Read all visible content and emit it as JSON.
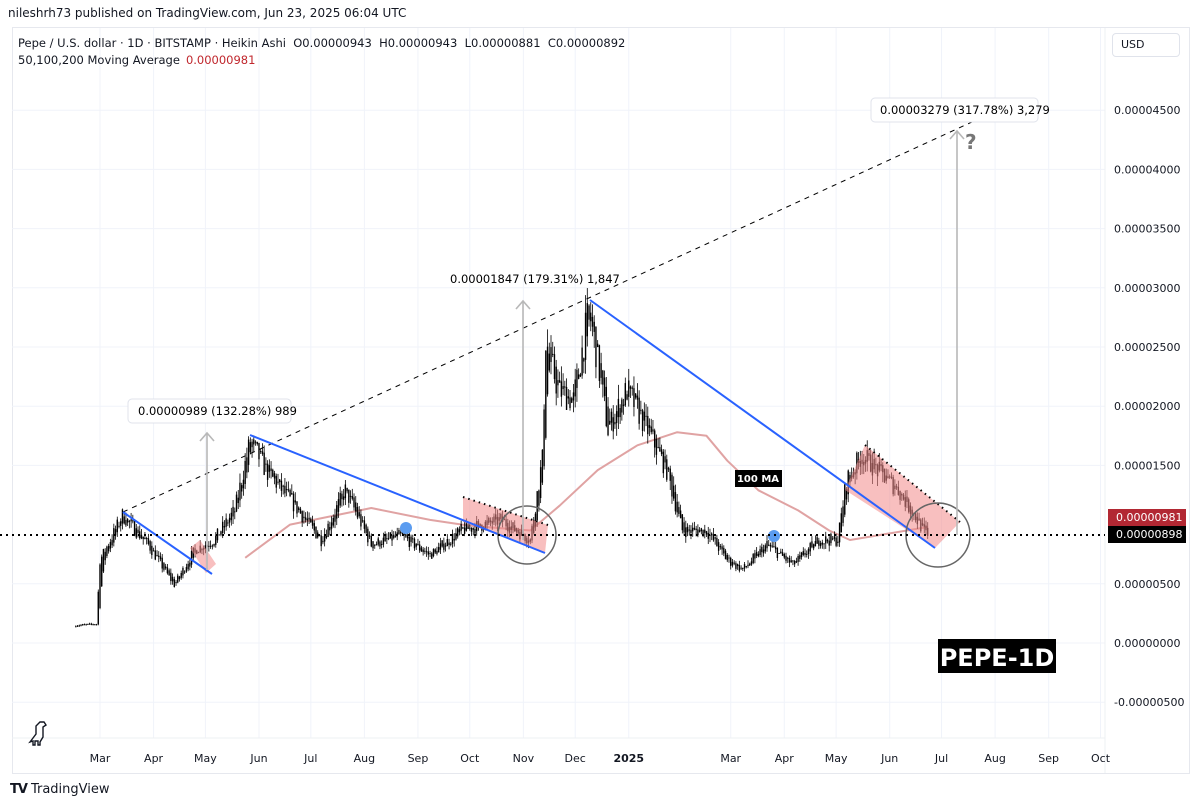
{
  "publisher_line": "nileshrh73 published on TradingView.com, Jun 23, 2025 06:04 UTC",
  "legend": {
    "symbol": "Pepe / U.S. dollar · 1D · BITSTAMP · Heikin Ashi",
    "open": "O0.00000943",
    "high": "H0.00000943",
    "low": "L0.00000881",
    "close": "C0.00000892",
    "indicator": "50,100,200 Moving Average",
    "indicator_value": "0.00000981"
  },
  "currency_button": "USD",
  "footer_brand": "TradingView",
  "annotations": {
    "measure_1": "0.00000989 (132.28%) 989",
    "measure_2": "0.00001847 (179.31%) 1,847",
    "measure_3": "0.00003279 (317.78%) 3,279",
    "question_mark": "?",
    "ma_label": "100 MA",
    "watermark": "PEPE-1D"
  },
  "colors": {
    "trendline": "#2962ff",
    "ma": "#e0a3a3",
    "pattern_fill": "#f28b8b",
    "ma_price_tag": "#b22833",
    "last_price_tag": "#000000"
  },
  "chart_data": {
    "type": "candlestick",
    "style": "Heikin Ashi",
    "title": "Pepe / U.S. dollar · 1D · BITSTAMP",
    "ylim": [
      -7.5e-06,
      5e-05
    ],
    "y_ticks": [
      "0.00004500",
      "0.00004000",
      "0.00003500",
      "0.00003000",
      "0.00002500",
      "0.00002000",
      "0.00001500",
      "0.00000500",
      "0.00000000",
      "-0.00000500"
    ],
    "y_tick_values": [
      4.5e-05,
      4e-05,
      3.5e-05,
      3e-05,
      2.5e-05,
      2e-05,
      1.5e-05,
      5e-06,
      0,
      -5e-06
    ],
    "x_ticks": [
      {
        "label": "Mar",
        "date": "2024-03-01"
      },
      {
        "label": "Apr",
        "date": "2024-04-01"
      },
      {
        "label": "May",
        "date": "2024-05-01"
      },
      {
        "label": "Jun",
        "date": "2024-06-01"
      },
      {
        "label": "Jul",
        "date": "2024-07-01"
      },
      {
        "label": "Aug",
        "date": "2024-08-01"
      },
      {
        "label": "Sep",
        "date": "2024-09-01"
      },
      {
        "label": "Oct",
        "date": "2024-10-01"
      },
      {
        "label": "Nov",
        "date": "2024-11-01"
      },
      {
        "label": "Dec",
        "date": "2024-12-01"
      },
      {
        "label": "2025",
        "date": "2025-01-01"
      },
      {
        "label": "Mar",
        "date": "2025-03-01"
      },
      {
        "label": "Apr",
        "date": "2025-04-01"
      },
      {
        "label": "May",
        "date": "2025-05-01"
      },
      {
        "label": "Jun",
        "date": "2025-06-01"
      },
      {
        "label": "Jul",
        "date": "2025-07-01"
      },
      {
        "label": "Aug",
        "date": "2025-08-01"
      },
      {
        "label": "Sep",
        "date": "2025-09-01"
      },
      {
        "label": "Oct",
        "date": "2025-10-01"
      }
    ],
    "price_path": [
      [
        "2024-02-16",
        1.5e-06
      ],
      [
        "2024-02-28",
        1.6e-06
      ],
      [
        "2024-03-01",
        7e-06
      ],
      [
        "2024-03-07",
        8.7e-06
      ],
      [
        "2024-03-14",
        1.08e-05
      ],
      [
        "2024-03-29",
        8.3e-06
      ],
      [
        "2024-04-13",
        4.9e-06
      ],
      [
        "2024-04-25",
        7.9e-06
      ],
      [
        "2024-05-06",
        8.7e-06
      ],
      [
        "2024-05-18",
        1.12e-05
      ],
      [
        "2024-05-27",
        1.71e-05
      ],
      [
        "2024-06-05",
        1.46e-05
      ],
      [
        "2024-06-19",
        1.21e-05
      ],
      [
        "2024-07-07",
        8.7e-06
      ],
      [
        "2024-07-21",
        1.29e-05
      ],
      [
        "2024-08-05",
        8.3e-06
      ],
      [
        "2024-08-22",
        9.1e-06
      ],
      [
        "2024-09-08",
        7.4e-06
      ],
      [
        "2024-09-26",
        9.5e-06
      ],
      [
        "2024-10-19",
        1.04e-05
      ],
      [
        "2024-11-05",
        8.7e-06
      ],
      [
        "2024-11-12",
        1.55e-05
      ],
      [
        "2024-11-14",
        2.56e-05
      ],
      [
        "2024-11-21",
        2.14e-05
      ],
      [
        "2024-11-30",
        2.05e-05
      ],
      [
        "2024-12-09",
        2.81e-05
      ],
      [
        "2024-12-14",
        2.39e-05
      ],
      [
        "2024-12-20",
        1.8e-05
      ],
      [
        "2024-12-31",
        2.14e-05
      ],
      [
        "2025-01-12",
        1.8e-05
      ],
      [
        "2025-01-23",
        1.46e-05
      ],
      [
        "2025-02-01",
        9.5e-06
      ],
      [
        "2025-02-15",
        9.5e-06
      ],
      [
        "2025-02-27",
        7e-06
      ],
      [
        "2025-03-08",
        6.2e-06
      ],
      [
        "2025-03-22",
        8.3e-06
      ],
      [
        "2025-04-06",
        6.6e-06
      ],
      [
        "2025-04-21",
        8.7e-06
      ],
      [
        "2025-05-02",
        8.7e-06
      ],
      [
        "2025-05-07",
        1.38e-05
      ],
      [
        "2025-05-16",
        1.59e-05
      ],
      [
        "2025-05-25",
        1.46e-05
      ],
      [
        "2025-06-06",
        1.29e-05
      ],
      [
        "2025-06-17",
        1.04e-05
      ],
      [
        "2025-06-23",
        8.9e-06
      ]
    ],
    "moving_average_100": [
      [
        "2024-05-24",
        7.2e-06
      ],
      [
        "2024-06-19",
        1e-05
      ],
      [
        "2024-08-05",
        1.14e-05
      ],
      [
        "2024-09-08",
        1.04e-05
      ],
      [
        "2024-10-01",
        9.9e-06
      ],
      [
        "2024-11-05",
        9.5e-06
      ],
      [
        "2024-11-22",
        1.16e-05
      ],
      [
        "2024-12-14",
        1.46e-05
      ],
      [
        "2025-01-06",
        1.67e-05
      ],
      [
        "2025-01-29",
        1.78e-05
      ],
      [
        "2025-02-15",
        1.75e-05
      ],
      [
        "2025-02-27",
        1.54e-05
      ],
      [
        "2025-03-17",
        1.29e-05
      ],
      [
        "2025-04-09",
        1.12e-05
      ],
      [
        "2025-04-27",
        9.5e-06
      ],
      [
        "2025-05-09",
        8.7e-06
      ],
      [
        "2025-06-23",
        9.8e-06
      ]
    ],
    "last_price": "0.00000898",
    "ma_price": "0.00000981"
  }
}
